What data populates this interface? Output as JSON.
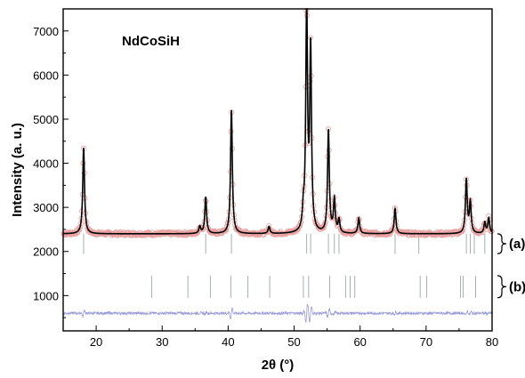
{
  "chart_data": {
    "type": "line",
    "title": "NdCoSiH",
    "xlabel": "2θ (°)",
    "ylabel": "Intensity (a. u.)",
    "xlim": [
      15,
      80
    ],
    "ylim": [
      200,
      7500
    ],
    "xticks": [
      20,
      30,
      40,
      50,
      60,
      70,
      80
    ],
    "yticks": [
      1000,
      2000,
      3000,
      4000,
      5000,
      6000,
      7000
    ],
    "grid": false,
    "legend": "none",
    "baseline": 2400,
    "peaks": [
      {
        "x": 18.1,
        "y": 4350
      },
      {
        "x": 35.7,
        "y": 2560
      },
      {
        "x": 36.6,
        "y": 3230
      },
      {
        "x": 40.5,
        "y": 5200
      },
      {
        "x": 46.2,
        "y": 2560
      },
      {
        "x": 51.4,
        "y": 2800
      },
      {
        "x": 51.9,
        "y": 7480
      },
      {
        "x": 52.5,
        "y": 6500
      },
      {
        "x": 55.2,
        "y": 4720
      },
      {
        "x": 56.1,
        "y": 3150
      },
      {
        "x": 56.8,
        "y": 2700
      },
      {
        "x": 59.8,
        "y": 2750
      },
      {
        "x": 65.3,
        "y": 2970
      },
      {
        "x": 76.1,
        "y": 3620
      },
      {
        "x": 76.7,
        "y": 3100
      },
      {
        "x": 78.9,
        "y": 2650
      },
      {
        "x": 79.5,
        "y": 2750
      }
    ],
    "series": [
      {
        "role": "observed",
        "color": "#e8a0a0",
        "marker": "open-circle"
      },
      {
        "role": "calculated",
        "color": "#000000"
      },
      {
        "role": "difference",
        "color": "#9a9ad8",
        "offset": 600
      }
    ],
    "bragg_sets": [
      {
        "label": "(a)",
        "y_range": [
          1950,
          2400
        ],
        "color": "#9aa8a0",
        "positions": [
          18.1,
          36.6,
          40.5,
          51.9,
          52.5,
          55.2,
          56.1,
          56.8,
          65.3,
          68.9,
          76.1,
          76.7,
          77.3,
          78.9
        ]
      },
      {
        "label": "(b)",
        "y_range": [
          950,
          1450
        ],
        "color": "#9aa8a0",
        "positions": [
          28.4,
          33.9,
          37.3,
          40.4,
          43.0,
          46.3,
          51.4,
          52.2,
          55.4,
          57.8,
          58.5,
          59.2,
          69.1,
          70.1,
          75.2,
          75.6,
          77.5
        ]
      }
    ]
  }
}
